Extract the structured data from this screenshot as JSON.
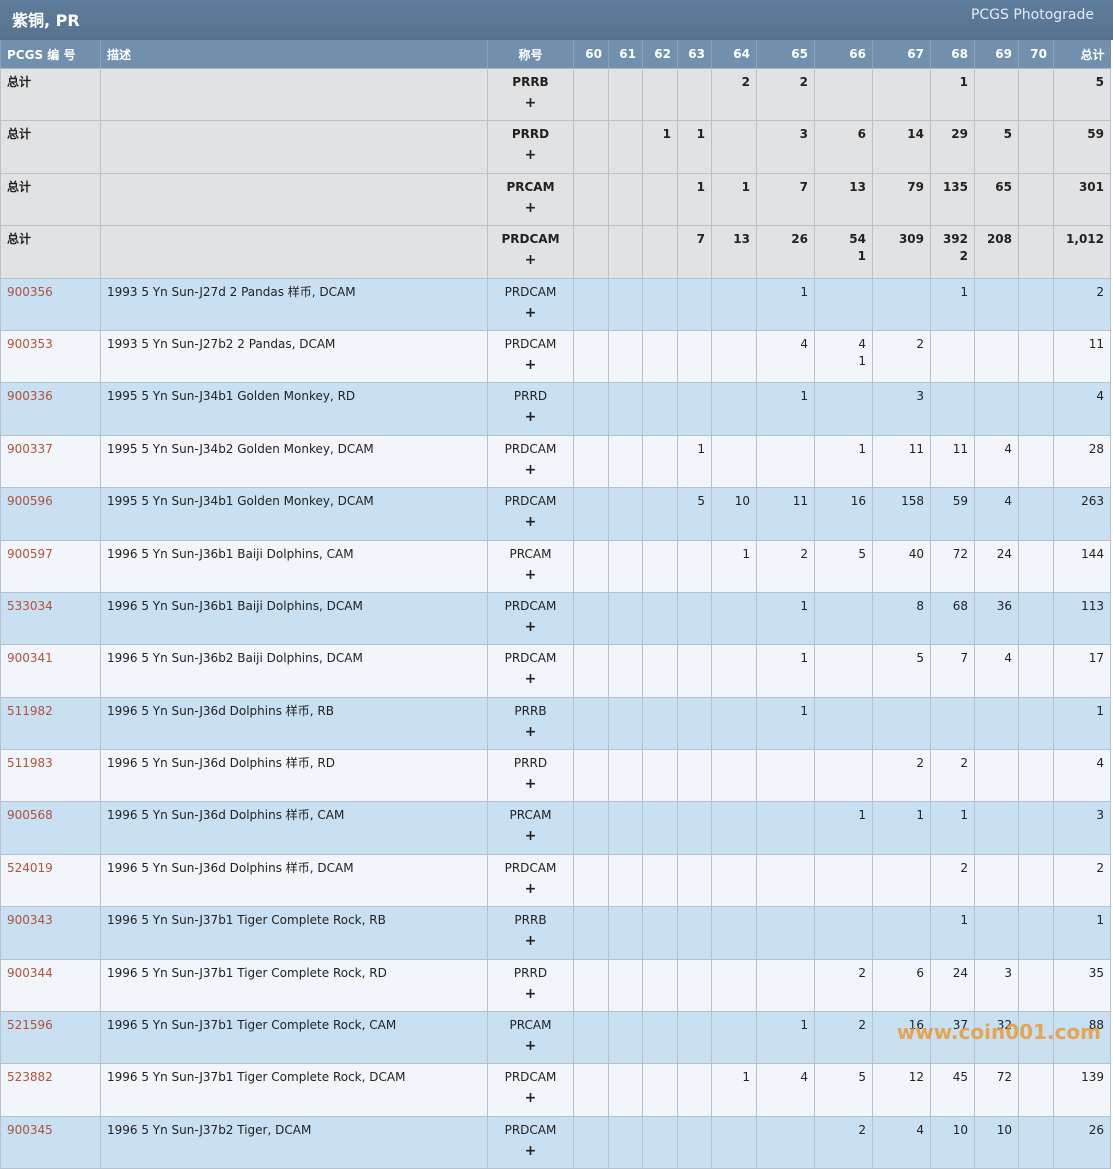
{
  "header": {
    "title": "紫铜, PR",
    "link": "PCGS Photograde"
  },
  "table": {
    "columns": [
      "PCGS 编 号",
      "描述",
      "称号",
      "60",
      "61",
      "62",
      "63",
      "64",
      "65",
      "66",
      "67",
      "68",
      "69",
      "70",
      "总计"
    ],
    "expand_label": "+",
    "rows": [
      {
        "id": "总计",
        "designation": "PRRB",
        "grades": [
          null,
          null,
          null,
          null,
          2,
          2,
          null,
          null,
          1,
          null,
          null
        ],
        "total": 5
      },
      {
        "id": "总计",
        "designation": "PRRD",
        "grades": [
          null,
          null,
          1,
          1,
          null,
          3,
          6,
          14,
          29,
          5,
          null
        ],
        "total": 59
      },
      {
        "id": "总计",
        "designation": "PRCAM",
        "grades": [
          null,
          null,
          null,
          1,
          1,
          7,
          13,
          79,
          135,
          65,
          null
        ],
        "total": 301
      },
      {
        "id": "总计",
        "designation": "PRDCAM",
        "grades": [
          null,
          null,
          null,
          7,
          13,
          26,
          "54\n1",
          309,
          "392\n2",
          208,
          null
        ],
        "total": "1,012"
      },
      {
        "id": "900356",
        "description": "1993 5 Yn Sun-J27d 2 Pandas 样币, DCAM",
        "designation": "PRDCAM",
        "grades": [
          null,
          null,
          null,
          null,
          null,
          1,
          null,
          null,
          1,
          null,
          null
        ],
        "total": 2
      },
      {
        "id": "900353",
        "description": "1993 5 Yn Sun-J27b2 2 Pandas, DCAM",
        "designation": "PRDCAM",
        "grades": [
          null,
          null,
          null,
          null,
          null,
          4,
          "4\n1",
          2,
          null,
          null,
          null
        ],
        "total": 11
      },
      {
        "id": "900336",
        "description": "1995 5 Yn Sun-J34b1 Golden Monkey, RD",
        "designation": "PRRD",
        "grades": [
          null,
          null,
          null,
          null,
          null,
          1,
          null,
          3,
          null,
          null,
          null
        ],
        "total": 4
      },
      {
        "id": "900337",
        "description": "1995 5 Yn Sun-J34b2 Golden Monkey, DCAM",
        "designation": "PRDCAM",
        "grades": [
          null,
          null,
          null,
          1,
          null,
          null,
          1,
          11,
          11,
          4,
          null
        ],
        "total": 28
      },
      {
        "id": "900596",
        "description": "1995 5 Yn Sun-J34b1 Golden Monkey, DCAM",
        "designation": "PRDCAM",
        "grades": [
          null,
          null,
          null,
          5,
          10,
          11,
          16,
          158,
          59,
          4,
          null
        ],
        "total": 263
      },
      {
        "id": "900597",
        "description": "1996 5 Yn Sun-J36b1 Baiji Dolphins, CAM",
        "designation": "PRCAM",
        "grades": [
          null,
          null,
          null,
          null,
          1,
          2,
          5,
          40,
          72,
          24,
          null
        ],
        "total": 144
      },
      {
        "id": "533034",
        "description": "1996 5 Yn Sun-J36b1 Baiji Dolphins, DCAM",
        "designation": "PRDCAM",
        "grades": [
          null,
          null,
          null,
          null,
          null,
          1,
          null,
          8,
          68,
          36,
          null
        ],
        "total": 113
      },
      {
        "id": "900341",
        "description": "1996 5 Yn Sun-J36b2 Baiji Dolphins, DCAM",
        "designation": "PRDCAM",
        "grades": [
          null,
          null,
          null,
          null,
          null,
          1,
          null,
          5,
          7,
          4,
          null
        ],
        "total": 17
      },
      {
        "id": "511982",
        "description": "1996 5 Yn Sun-J36d Dolphins 样币, RB",
        "designation": "PRRB",
        "grades": [
          null,
          null,
          null,
          null,
          null,
          1,
          null,
          null,
          null,
          null,
          null
        ],
        "total": 1
      },
      {
        "id": "511983",
        "description": "1996 5 Yn Sun-J36d Dolphins 样币, RD",
        "designation": "PRRD",
        "grades": [
          null,
          null,
          null,
          null,
          null,
          null,
          null,
          2,
          2,
          null,
          null
        ],
        "total": 4
      },
      {
        "id": "900568",
        "description": "1996 5 Yn Sun-J36d Dolphins 样币, CAM",
        "designation": "PRCAM",
        "grades": [
          null,
          null,
          null,
          null,
          null,
          null,
          1,
          1,
          1,
          null,
          null
        ],
        "total": 3
      },
      {
        "id": "524019",
        "description": "1996 5 Yn Sun-J36d Dolphins 样币, DCAM",
        "designation": "PRDCAM",
        "grades": [
          null,
          null,
          null,
          null,
          null,
          null,
          null,
          null,
          2,
          null,
          null
        ],
        "total": 2
      },
      {
        "id": "900343",
        "description": "1996 5 Yn Sun-J37b1 Tiger Complete Rock, RB",
        "designation": "PRRB",
        "grades": [
          null,
          null,
          null,
          null,
          null,
          null,
          null,
          null,
          1,
          null,
          null
        ],
        "total": 1
      },
      {
        "id": "900344",
        "description": "1996 5 Yn Sun-J37b1 Tiger Complete Rock, RD",
        "designation": "PRRD",
        "grades": [
          null,
          null,
          null,
          null,
          null,
          null,
          2,
          6,
          24,
          3,
          null
        ],
        "total": 35
      },
      {
        "id": "521596",
        "description": "1996 5 Yn Sun-J37b1 Tiger Complete Rock, CAM",
        "designation": "PRCAM",
        "grades": [
          null,
          null,
          null,
          null,
          null,
          1,
          2,
          16,
          37,
          32,
          null
        ],
        "total": 88
      },
      {
        "id": "523882",
        "description": "1996 5 Yn Sun-J37b1 Tiger Complete Rock, DCAM",
        "designation": "PRDCAM",
        "grades": [
          null,
          null,
          null,
          null,
          1,
          4,
          5,
          12,
          45,
          72,
          null
        ],
        "total": 139
      },
      {
        "id": "900345",
        "description": "1996 5 Yn Sun-J37b2 Tiger, DCAM",
        "designation": "PRDCAM",
        "grades": [
          null,
          null,
          null,
          null,
          null,
          null,
          2,
          4,
          10,
          10,
          null
        ],
        "total": 26
      }
    ]
  },
  "watermark": "www.coin001.com"
}
